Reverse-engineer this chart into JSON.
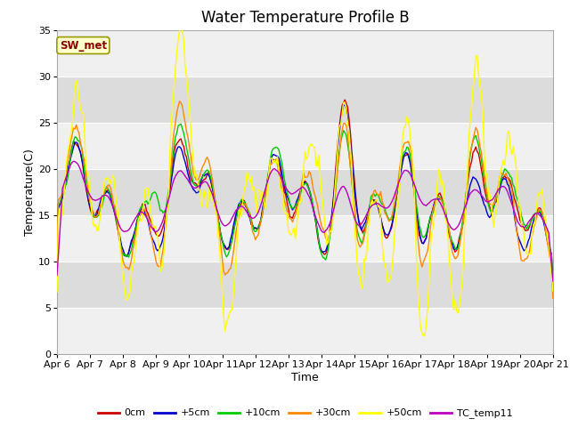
{
  "title": "Water Temperature Profile B",
  "xlabel": "Time",
  "ylabel": "Temperature(C)",
  "ylim": [
    0,
    35
  ],
  "xlim": [
    0,
    360
  ],
  "tick_labels": [
    "Apr 6",
    "Apr 7",
    "Apr 8",
    "Apr 9",
    "Apr 10",
    "Apr 11",
    "Apr 12",
    "Apr 13",
    "Apr 14",
    "Apr 15",
    "Apr 16",
    "Apr 17",
    "Apr 18",
    "Apr 19",
    "Apr 20",
    "Apr 21"
  ],
  "tick_positions": [
    0,
    24,
    48,
    72,
    96,
    120,
    144,
    168,
    192,
    216,
    240,
    264,
    288,
    312,
    336,
    360
  ],
  "yticks": [
    0,
    5,
    10,
    15,
    20,
    25,
    30,
    35
  ],
  "legend_labels": [
    "0cm",
    "+5cm",
    "+10cm",
    "+30cm",
    "+50cm",
    "TC_temp11"
  ],
  "legend_colors": [
    "#cc0000",
    "#0000cc",
    "#00cc00",
    "#ff8800",
    "#ffff00",
    "#bb00bb"
  ],
  "annotation_text": "SW_met",
  "annotation_color": "#8b0000",
  "annotation_bg": "#ffffcc",
  "plot_bg_light": "#f0f0f0",
  "plot_bg_dark": "#dcdcdc",
  "fig_bg": "#ffffff",
  "grid_color": "#ffffff",
  "title_fontsize": 12,
  "axis_fontsize": 9,
  "tick_fontsize": 8,
  "line_width": 1.0
}
